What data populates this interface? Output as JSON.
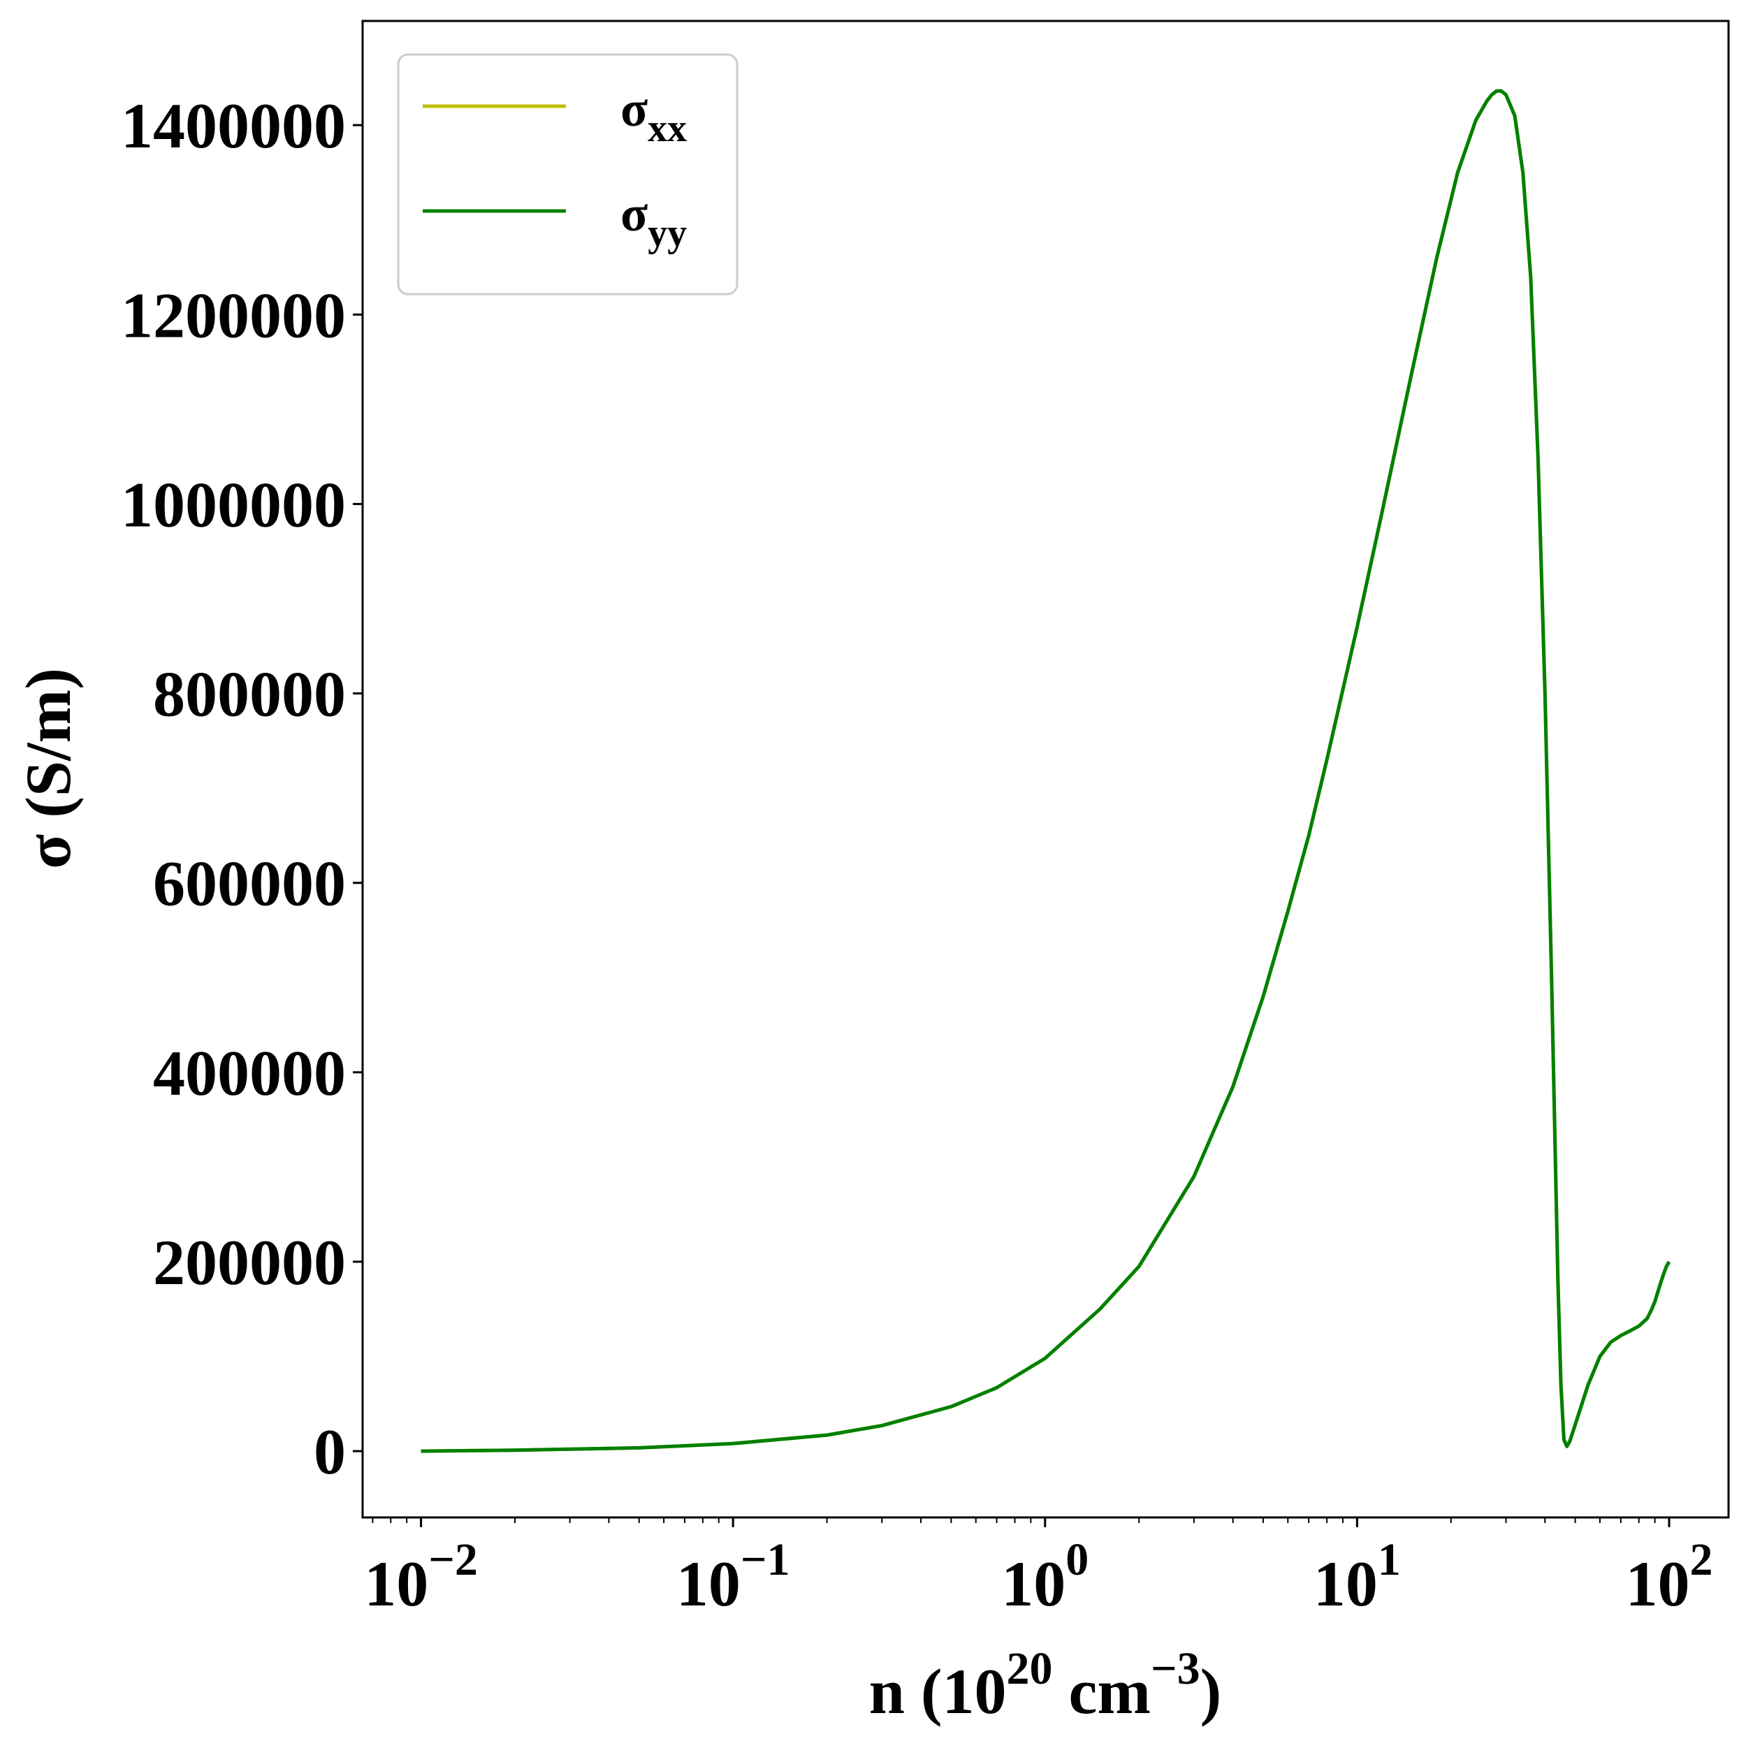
{
  "chart_data": {
    "type": "line",
    "xscale": "log",
    "xlabel": {
      "base": "n (10",
      "sup1": "20",
      "mid": " cm",
      "sup2": "−3",
      "end": ")"
    },
    "ylabel": "σ (S/m)",
    "xlim": [
      0.0065,
      155
    ],
    "ylim": [
      -70000,
      1510000
    ],
    "grid": false,
    "legend_position": "top-left",
    "xticks": [
      {
        "value": 0.01,
        "base": "10",
        "exp": "−2"
      },
      {
        "value": 0.1,
        "base": "10",
        "exp": "−1"
      },
      {
        "value": 1,
        "base": "10",
        "exp": "0"
      },
      {
        "value": 10,
        "base": "10",
        "exp": "1"
      },
      {
        "value": 100,
        "base": "10",
        "exp": "2"
      }
    ],
    "yticks": [
      {
        "value": 0,
        "label": "0"
      },
      {
        "value": 200000,
        "label": "200000"
      },
      {
        "value": 400000,
        "label": "400000"
      },
      {
        "value": 600000,
        "label": "600000"
      },
      {
        "value": 800000,
        "label": "800000"
      },
      {
        "value": 1000000,
        "label": "1000000"
      },
      {
        "value": 1200000,
        "label": "1200000"
      },
      {
        "value": 1400000,
        "label": "1400000"
      }
    ],
    "series": [
      {
        "name": {
          "base": "σ",
          "sub": "xx"
        },
        "color": "#bfbf00",
        "x": [
          0.01,
          0.02,
          0.05,
          0.1,
          0.2,
          0.3,
          0.5,
          0.7,
          1,
          1.5,
          2,
          3,
          4,
          5,
          6,
          7,
          8,
          10,
          12,
          15,
          18,
          21,
          24,
          26,
          27,
          28,
          29,
          30,
          32,
          34,
          36,
          38,
          40,
          42,
          44,
          45,
          46,
          47,
          48,
          50,
          55,
          60,
          65,
          70,
          75,
          80,
          85,
          88,
          90,
          92,
          94,
          96,
          98,
          100
        ],
        "y": [
          0,
          1000,
          3500,
          8000,
          17000,
          27000,
          47000,
          67000,
          98000,
          150000,
          195000,
          290000,
          385000,
          480000,
          570000,
          650000,
          730000,
          870000,
          990000,
          1140000,
          1260000,
          1350000,
          1405000,
          1425000,
          1432000,
          1436000,
          1436000,
          1432000,
          1410000,
          1350000,
          1240000,
          1050000,
          800000,
          500000,
          180000,
          70000,
          12000,
          5000,
          10000,
          28000,
          70000,
          100000,
          115000,
          122000,
          127000,
          132000,
          140000,
          150000,
          158000,
          168000,
          178000,
          187000,
          195000,
          200000
        ]
      },
      {
        "name": {
          "base": "σ",
          "sub": "yy"
        },
        "color": "#008000",
        "x": [
          0.01,
          0.02,
          0.05,
          0.1,
          0.2,
          0.3,
          0.5,
          0.7,
          1,
          1.5,
          2,
          3,
          4,
          5,
          6,
          7,
          8,
          10,
          12,
          15,
          18,
          21,
          24,
          26,
          27,
          28,
          29,
          30,
          32,
          34,
          36,
          38,
          40,
          42,
          44,
          45,
          46,
          47,
          48,
          50,
          55,
          60,
          65,
          70,
          75,
          80,
          85,
          88,
          90,
          92,
          94,
          96,
          98,
          100
        ],
        "y": [
          0,
          1000,
          3500,
          8000,
          17000,
          27000,
          47000,
          67000,
          98000,
          150000,
          195000,
          290000,
          385000,
          480000,
          570000,
          650000,
          730000,
          870000,
          990000,
          1140000,
          1260000,
          1350000,
          1405000,
          1425000,
          1432000,
          1436000,
          1436000,
          1432000,
          1410000,
          1350000,
          1240000,
          1050000,
          800000,
          500000,
          180000,
          70000,
          12000,
          5000,
          10000,
          28000,
          70000,
          100000,
          115000,
          122000,
          127000,
          132000,
          140000,
          150000,
          158000,
          168000,
          178000,
          187000,
          195000,
          200000
        ]
      }
    ]
  }
}
